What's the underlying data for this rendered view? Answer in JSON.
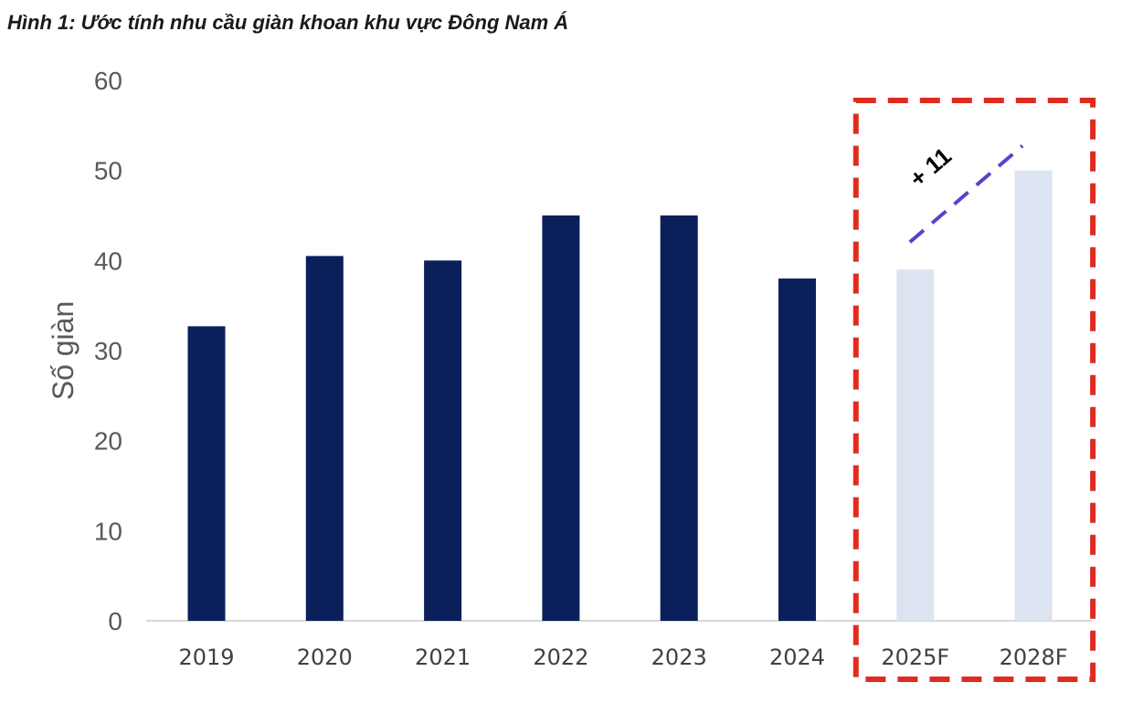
{
  "chart_data": {
    "type": "bar",
    "title": "Hình 1: Ước tính nhu cầu giàn khoan khu vực Đông Nam Á",
    "xlabel": "",
    "ylabel": "Số giàn",
    "categories": [
      "2019",
      "2020",
      "2021",
      "2022",
      "2023",
      "2024",
      "2025F",
      "2028F"
    ],
    "values": [
      32.7,
      40.5,
      40,
      45,
      45,
      38,
      39,
      50
    ],
    "forecast_categories": [
      "2025F",
      "2028F"
    ],
    "ylim": [
      0,
      60
    ],
    "yticks": [
      "0",
      "10",
      "20",
      "30",
      "40",
      "50",
      "60"
    ],
    "grid": false,
    "colors": {
      "actual": "#0b1f5b",
      "forecast": "#dce3f1",
      "highlight_box": "#e02b20",
      "trend_line": "#6040c8"
    },
    "annotation": "+ 11"
  }
}
